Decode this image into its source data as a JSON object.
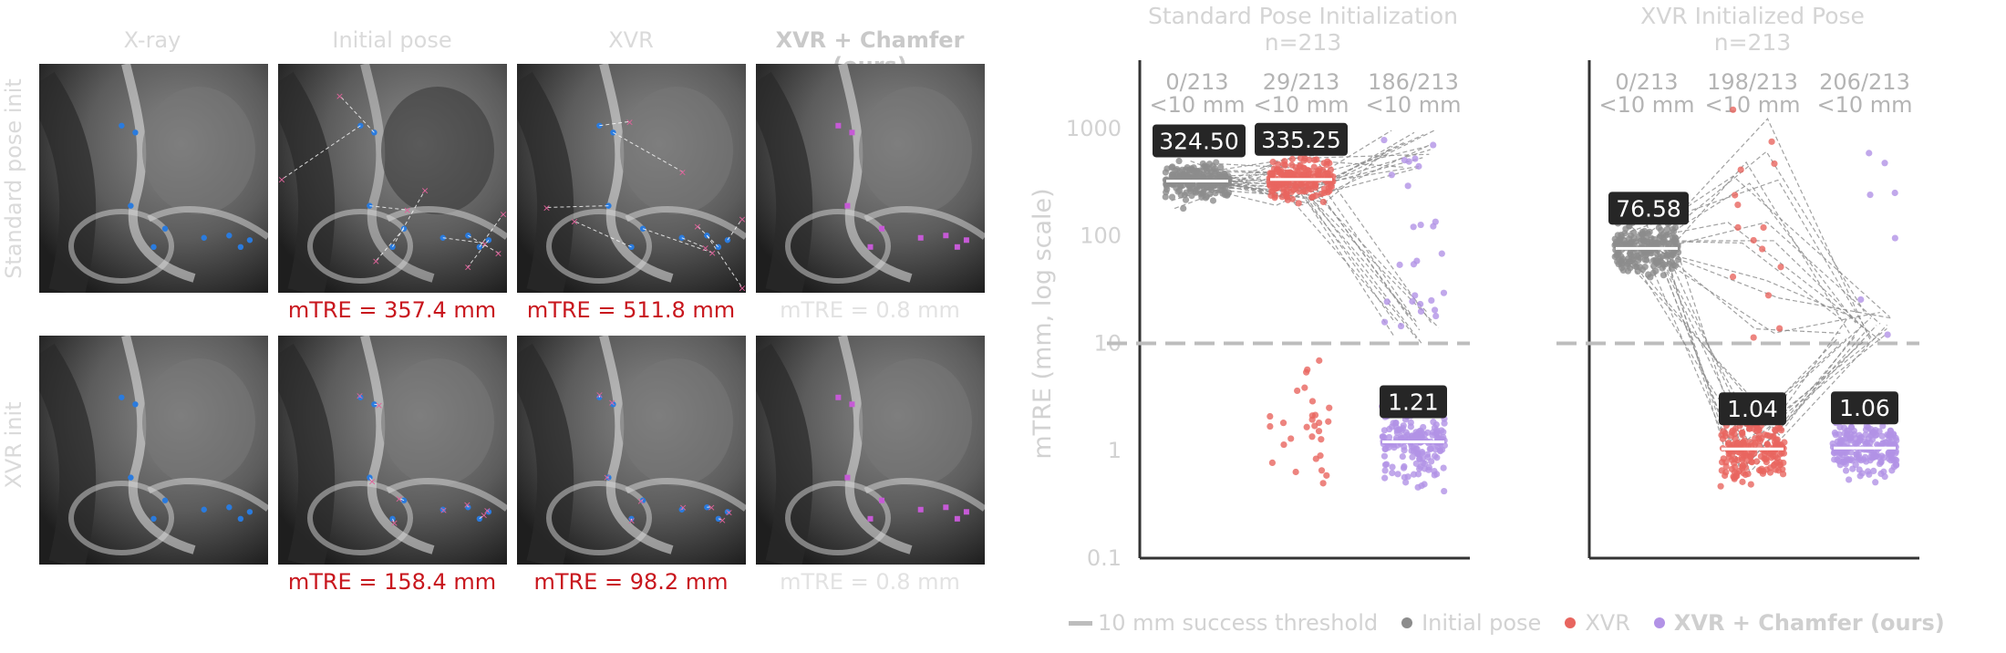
{
  "image_grid": {
    "column_headers": [
      "X-ray",
      "Initial pose",
      "XVR",
      "XVR + Chamfer (ours)"
    ],
    "row_labels": [
      "Standard pose init",
      "XVR init"
    ],
    "mtre_labels": [
      [
        "mTRE = 357.4 mm",
        "mTRE = 511.8 mm",
        "mTRE = 0.8 mm"
      ],
      [
        "mTRE = 158.4 mm",
        "mTRE = 98.2 mm",
        "mTRE = 0.8 mm"
      ]
    ],
    "colors": {
      "ground_truth_marker": "#2a7bde",
      "predicted_marker": "#e0629a",
      "chamfer_marker": "#c65ad6",
      "error_text": "#c8161d"
    }
  },
  "chart_data": [
    {
      "type": "scatter",
      "title": "Standard Pose Initialization",
      "subtitle": "n=213",
      "ylabel": "mTRE (mm, log scale)",
      "yscale": "log",
      "ylim": [
        0.1,
        5000
      ],
      "yticks": [
        "0.1",
        "1",
        "10",
        "100",
        "1000"
      ],
      "threshold": 10,
      "categories": [
        "Initial pose",
        "XVR",
        "XVR + Chamfer (ours)"
      ],
      "success_counts": [
        {
          "count": "0/213",
          "label": "<10 mm"
        },
        {
          "count": "29/213",
          "label": "<10 mm"
        },
        {
          "count": "186/213",
          "label": "<10 mm"
        }
      ],
      "median_labels": [
        {
          "category": "Initial pose",
          "text": "324.50",
          "value": 324.5
        },
        {
          "category": "XVR",
          "text": "335.25",
          "value": 335.25
        },
        {
          "category": "XVR + Chamfer (ours)",
          "text": "1.21",
          "value": 1.21
        }
      ]
    },
    {
      "type": "scatter",
      "title": "XVR Initialized Pose",
      "subtitle": "n=213",
      "yscale": "log",
      "ylim": [
        0.1,
        5000
      ],
      "threshold": 10,
      "categories": [
        "Initial pose",
        "XVR",
        "XVR + Chamfer (ours)"
      ],
      "success_counts": [
        {
          "count": "0/213",
          "label": "<10 mm"
        },
        {
          "count": "198/213",
          "label": "<10 mm"
        },
        {
          "count": "206/213",
          "label": "<10 mm"
        }
      ],
      "median_labels": [
        {
          "category": "Initial pose",
          "text": "76.58",
          "value": 76.58
        },
        {
          "category": "XVR",
          "text": "1.04",
          "value": 1.04
        },
        {
          "category": "XVR + Chamfer (ours)",
          "text": "1.06",
          "value": 1.06
        }
      ]
    }
  ],
  "legend": {
    "threshold_label": "10 mm success threshold",
    "series": [
      {
        "name": "Initial pose",
        "color": "#8c8c8c"
      },
      {
        "name": "XVR",
        "color": "#e8655f"
      },
      {
        "name": "XVR + Chamfer (ours)",
        "color": "#b292e6"
      }
    ]
  }
}
